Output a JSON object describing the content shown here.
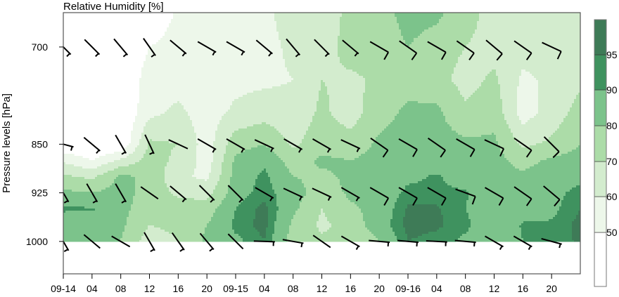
{
  "chart_data": {
    "type": "heatmap",
    "subtype": "filled-contour with wind barbs",
    "title": "Relative Humidity [%]",
    "xlabel": "",
    "ylabel": "Pressure levels [hPa]",
    "x_tick_labels": [
      "09-14",
      "04",
      "08",
      "12",
      "16",
      "20",
      "09-15",
      "04",
      "08",
      "12",
      "16",
      "20",
      "09-16",
      "04",
      "08",
      "12",
      "16",
      "20"
    ],
    "x_hours": [
      0,
      4,
      8,
      12,
      16,
      20,
      24,
      28,
      32,
      36,
      40,
      44,
      48,
      52,
      56,
      60,
      64,
      68,
      72
    ],
    "xlim_hours": [
      0,
      72
    ],
    "y_ticks": [
      700,
      850,
      925,
      1000
    ],
    "y_tick_labels": [
      "700",
      "850",
      "925",
      "1000"
    ],
    "ylim": [
      1050,
      647
    ],
    "y_reversed": true,
    "levels_hpa": [
      650,
      700,
      750,
      800,
      850,
      875,
      900,
      925,
      950,
      975,
      1000
    ],
    "rh_percent": [
      [
        40,
        40,
        40,
        40,
        40,
        58,
        72,
        82,
        91,
        85,
        82
      ],
      [
        40,
        40,
        40,
        40,
        40,
        50,
        68,
        80,
        91,
        84,
        82
      ],
      [
        40,
        40,
        40,
        40,
        40,
        62,
        82,
        84,
        83,
        82,
        80
      ],
      [
        40,
        50,
        55,
        57,
        72,
        74,
        78,
        76,
        74,
        70,
        65
      ],
      [
        52,
        55,
        56,
        62,
        70,
        68,
        62,
        68,
        75,
        72,
        70
      ],
      [
        52,
        55,
        55,
        55,
        55,
        55,
        58,
        66,
        75,
        80,
        82
      ],
      [
        55,
        55,
        57,
        62,
        76,
        82,
        84,
        86,
        90,
        92,
        88
      ],
      [
        58,
        57,
        58,
        65,
        80,
        88,
        92,
        93,
        97,
        97,
        95
      ],
      [
        64,
        62,
        60,
        63,
        68,
        75,
        80,
        85,
        82,
        78,
        75
      ],
      [
        62,
        64,
        70,
        72,
        76,
        82,
        78,
        74,
        70,
        68,
        72
      ],
      [
        74,
        75,
        68,
        65,
        74,
        80,
        82,
        82,
        78,
        74,
        70
      ],
      [
        75,
        74,
        72,
        76,
        82,
        84,
        83,
        84,
        84,
        86,
        80
      ],
      [
        84,
        80,
        76,
        82,
        84,
        85,
        88,
        92,
        96,
        97,
        95
      ],
      [
        82,
        75,
        74,
        82,
        84,
        85,
        91,
        92,
        96,
        96,
        93
      ],
      [
        74,
        70,
        66,
        72,
        82,
        84,
        85,
        91,
        90,
        92,
        88
      ],
      [
        66,
        66,
        72,
        76,
        82,
        84,
        83,
        84,
        83,
        82,
        80
      ],
      [
        66,
        64,
        58,
        55,
        68,
        76,
        82,
        84,
        86,
        91,
        90
      ],
      [
        70,
        65,
        62,
        64,
        72,
        82,
        86,
        88,
        88,
        91,
        92
      ],
      [
        66,
        66,
        68,
        74,
        80,
        84,
        88,
        92,
        95,
        97,
        96
      ]
    ],
    "colorbar": {
      "levels": [
        50,
        60,
        70,
        80,
        90,
        95
      ],
      "tick_labels": [
        "50",
        "60",
        "70",
        "80",
        "90",
        "95"
      ],
      "colors": [
        "#ffffff",
        "#edf7ea",
        "#d3ecce",
        "#acdca8",
        "#7cc38b",
        "#3f925f",
        "#3e7b57"
      ]
    },
    "wind_barbs": {
      "hours": [
        0,
        4,
        8,
        12,
        16,
        20,
        24,
        28,
        32,
        36,
        40,
        44,
        48,
        52,
        56,
        60,
        64,
        68
      ],
      "rows": [
        {
          "level": 700,
          "direction_deg": [
            135,
            135,
            140,
            145,
            130,
            120,
            120,
            130,
            140,
            135,
            130,
            120,
            125,
            120,
            125,
            130,
            125,
            115
          ],
          "speed_kt": [
            5,
            5,
            5,
            5,
            5,
            5,
            5,
            5,
            5,
            5,
            5,
            10,
            10,
            10,
            10,
            10,
            10,
            10
          ]
        },
        {
          "level": 850,
          "direction_deg": [
            105,
            130,
            150,
            155,
            115,
            120,
            120,
            115,
            120,
            120,
            115,
            125,
            120,
            125,
            120,
            115,
            125,
            135
          ],
          "speed_kt": [
            5,
            5,
            5,
            5,
            2,
            5,
            5,
            5,
            5,
            5,
            5,
            10,
            10,
            10,
            10,
            10,
            10,
            10
          ]
        },
        {
          "level": 925,
          "direction_deg": [
            150,
            150,
            150,
            125,
            130,
            135,
            135,
            120,
            115,
            115,
            120,
            120,
            120,
            120,
            110,
            120,
            125,
            130
          ],
          "speed_kt": [
            5,
            5,
            5,
            2,
            5,
            5,
            5,
            5,
            5,
            5,
            5,
            10,
            10,
            10,
            10,
            10,
            10,
            10
          ]
        },
        {
          "level": 1000,
          "direction_deg": [
            150,
            130,
            120,
            150,
            145,
            140,
            135,
            92,
            100,
            125,
            120,
            95,
            95,
            93,
            95,
            120,
            120,
            105
          ],
          "speed_kt": [
            5,
            2,
            2,
            5,
            5,
            5,
            2,
            5,
            5,
            2,
            5,
            5,
            5,
            5,
            5,
            5,
            5,
            5
          ]
        }
      ]
    },
    "grid": false,
    "legend": "colorbar right"
  }
}
